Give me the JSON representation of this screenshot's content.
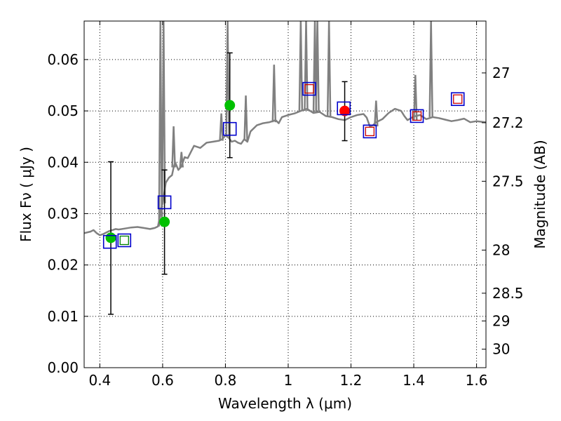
{
  "chart_data": {
    "type": "scatter",
    "xlabel": "Wavelength  λ (μm)",
    "ylabel": "Flux  Fν  ( μJy )",
    "ylabel_right": "Magnitude (AB)",
    "xlim": [
      0.35,
      1.63
    ],
    "ylim": [
      0.0,
      0.0675
    ],
    "x_ticks": [
      0.4,
      0.6,
      0.8,
      1.0,
      1.2,
      1.4,
      1.6
    ],
    "x_tick_labels": [
      "0.4",
      "0.6",
      "0.8",
      "1",
      "1.2",
      "1.4",
      "1.6"
    ],
    "y_ticks": [
      0.0,
      0.01,
      0.02,
      0.03,
      0.04,
      0.05,
      0.06
    ],
    "y_tick_labels": [
      "0.00",
      "0.01",
      "0.02",
      "0.03",
      "0.04",
      "0.05",
      "0.06"
    ],
    "right_ticks": [
      {
        "label": "27",
        "flux": 0.0574
      },
      {
        "label": "27.2",
        "flux": 0.0477
      },
      {
        "label": "27.5",
        "flux": 0.0363
      },
      {
        "label": "28",
        "flux": 0.0229
      },
      {
        "label": "28.5",
        "flux": 0.0145
      },
      {
        "label": "29",
        "flux": 0.0091
      },
      {
        "label": "30",
        "flux": 0.0036
      }
    ],
    "grid": true,
    "series": [
      {
        "name": "model-spectrum",
        "kind": "line",
        "color": "#808080",
        "x": [
          0.35,
          0.37,
          0.38,
          0.39,
          0.4,
          0.41,
          0.42,
          0.43,
          0.44,
          0.45,
          0.46,
          0.48,
          0.5,
          0.52,
          0.54,
          0.56,
          0.575,
          0.585,
          0.59,
          0.595,
          0.6,
          0.605,
          0.61,
          0.62,
          0.63,
          0.635,
          0.64,
          0.65,
          0.66,
          0.67,
          0.68,
          0.69,
          0.7,
          0.72,
          0.74,
          0.76,
          0.78,
          0.79,
          0.8,
          0.81,
          0.82,
          0.83,
          0.84,
          0.85,
          0.86,
          0.87,
          0.88,
          0.9,
          0.92,
          0.94,
          0.96,
          0.97,
          0.98,
          1.0,
          1.02,
          1.04,
          1.06,
          1.08,
          1.1,
          1.12,
          1.14,
          1.16,
          1.18,
          1.2,
          1.22,
          1.24,
          1.25,
          1.26,
          1.27,
          1.28,
          1.3,
          1.32,
          1.34,
          1.36,
          1.37,
          1.38,
          1.4,
          1.42,
          1.44,
          1.46,
          1.48,
          1.5,
          1.52,
          1.54,
          1.56,
          1.58,
          1.6,
          1.63
        ],
        "y": [
          0.0262,
          0.0265,
          0.0268,
          0.0262,
          0.0258,
          0.026,
          0.0263,
          0.0266,
          0.0268,
          0.027,
          0.0269,
          0.0271,
          0.0273,
          0.0274,
          0.0272,
          0.027,
          0.0272,
          0.0275,
          0.029,
          0.031,
          0.032,
          0.034,
          0.036,
          0.037,
          0.0375,
          0.039,
          0.04,
          0.0385,
          0.0392,
          0.041,
          0.0408,
          0.042,
          0.0432,
          0.0428,
          0.0438,
          0.044,
          0.0442,
          0.0445,
          0.0452,
          0.0448,
          0.044,
          0.0442,
          0.0438,
          0.0436,
          0.0445,
          0.044,
          0.046,
          0.0472,
          0.0476,
          0.0478,
          0.0482,
          0.0476,
          0.0488,
          0.0492,
          0.0495,
          0.05,
          0.0504,
          0.0496,
          0.0498,
          0.049,
          0.0488,
          0.0484,
          0.0482,
          0.0488,
          0.0492,
          0.0494,
          0.0487,
          0.047,
          0.0472,
          0.0478,
          0.0484,
          0.0496,
          0.0504,
          0.05,
          0.049,
          0.0482,
          0.0489,
          0.0492,
          0.0484,
          0.0488,
          0.0486,
          0.0483,
          0.048,
          0.0482,
          0.0485,
          0.0478,
          0.048,
          0.0478
        ]
      },
      {
        "name": "model-emission-lines",
        "kind": "spikes",
        "color": "#808080",
        "x": [
          0.593,
          0.603,
          0.635,
          0.66,
          0.787,
          0.807,
          0.865,
          0.955,
          1.04,
          1.057,
          1.085,
          1.093,
          1.13,
          1.28,
          1.405,
          1.455
        ],
        "base": [
          0.0275,
          0.032,
          0.039,
          0.039,
          0.0442,
          0.045,
          0.0442,
          0.0478,
          0.05,
          0.05,
          0.0496,
          0.0496,
          0.049,
          0.047,
          0.0482,
          0.0488
        ],
        "peak": [
          0.0675,
          0.0675,
          0.047,
          0.042,
          0.0495,
          0.0675,
          0.053,
          0.059,
          0.0675,
          0.0675,
          0.0675,
          0.0675,
          0.0675,
          0.052,
          0.057,
          0.0675
        ]
      },
      {
        "name": "observed-green",
        "kind": "points",
        "color": "#00c000",
        "x": [
          0.435,
          0.606,
          0.814
        ],
        "y": [
          0.0253,
          0.0284,
          0.0511
        ],
        "yerr_low": [
          0.0104,
          0.0182,
          0.0409
        ],
        "yerr_high": [
          0.0401,
          0.0385,
          0.0613
        ]
      },
      {
        "name": "observed-red",
        "kind": "points",
        "color": "#ff0000",
        "x": [
          1.18
        ],
        "y": [
          0.05
        ],
        "yerr_low": [
          0.0442
        ],
        "yerr_high": [
          0.0557
        ]
      },
      {
        "name": "model-photometry-blue",
        "kind": "squares",
        "color": "#0000cc",
        "x": [
          0.432,
          0.606,
          0.814,
          1.067,
          1.177,
          1.26,
          1.41,
          1.54
        ],
        "y": [
          0.0245,
          0.0322,
          0.0465,
          0.0543,
          0.0505,
          0.046,
          0.049,
          0.0523
        ]
      },
      {
        "name": "photometry-small-squares",
        "kind": "small-squares",
        "x": [
          0.478,
          1.067,
          1.26,
          1.41,
          1.54
        ],
        "y": [
          0.0248,
          0.0543,
          0.046,
          0.049,
          0.0523
        ],
        "colors": [
          "#008000",
          "#cc0000",
          "#cc0000",
          "#cc0000",
          "#cc0000"
        ]
      },
      {
        "name": "blue-square-green-small-outer",
        "kind": "squares",
        "color": "#0000cc",
        "x": [
          0.478
        ],
        "y": [
          0.0248
        ]
      }
    ]
  }
}
